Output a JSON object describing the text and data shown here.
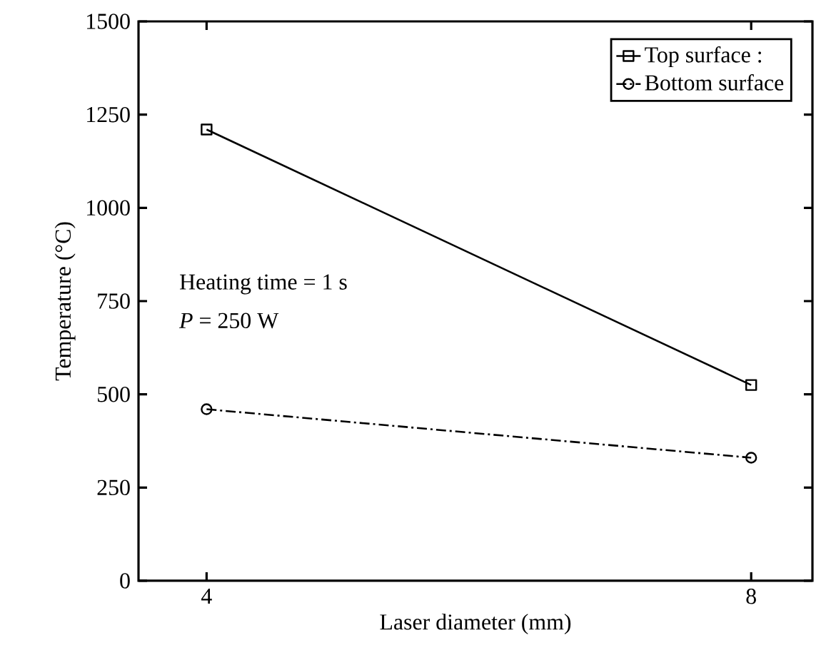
{
  "chart_data": {
    "type": "line",
    "xlabel": "Laser diameter (mm)",
    "ylabel": "Temperature (°C)",
    "x": [
      4,
      8
    ],
    "series": [
      {
        "name": "Top surface :",
        "color": "#000000",
        "values": [
          1210,
          525
        ],
        "marker": "square",
        "line_style": "solid"
      },
      {
        "name": "Bottom surface",
        "color": "#000000",
        "values": [
          460,
          330
        ],
        "marker": "circle",
        "line_style": "dashdot"
      }
    ],
    "xlim": [
      3.5,
      8.45
    ],
    "xticks": [
      4,
      8
    ],
    "ylim": [
      0,
      1500
    ],
    "yticks": [
      0,
      250,
      500,
      750,
      1000,
      1250,
      1500
    ],
    "annotations": [
      "Heating time = 1 s",
      "*P* = 250 W"
    ],
    "legend": "top right",
    "grid": false
  }
}
